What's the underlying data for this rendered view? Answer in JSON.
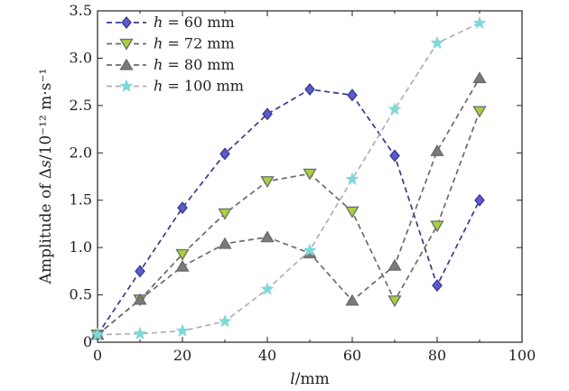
{
  "chart_data": {
    "type": "line",
    "xlabel": "l/mm",
    "ylabel": "Amplitude of Δs/10⁻¹² m·s⁻¹",
    "xlim": [
      0,
      100
    ],
    "ylim": [
      0,
      3.5
    ],
    "x_ticks": [
      0,
      20,
      40,
      60,
      80,
      100
    ],
    "y_ticks": [
      0,
      0.5,
      1.0,
      1.5,
      2.0,
      2.5,
      3.0,
      3.5
    ],
    "x_tick_labels": [
      "0",
      "20",
      "40",
      "60",
      "80",
      "100"
    ],
    "y_tick_labels": [
      "0",
      "0.5",
      "1.0",
      "1.5",
      "2.0",
      "2.5",
      "3.0",
      "3.5"
    ],
    "grid": false,
    "legend_position": "top-left",
    "series": [
      {
        "name": "h = 60 mm",
        "marker": "diamond",
        "line_color": "#3a3a8a",
        "marker_color": "#5b5bd0",
        "x": [
          0,
          10,
          20,
          30,
          40,
          50,
          60,
          70,
          80,
          90
        ],
        "values": [
          0.08,
          0.75,
          1.42,
          1.99,
          2.41,
          2.67,
          2.61,
          1.97,
          0.6,
          1.5
        ]
      },
      {
        "name": "h = 72 mm",
        "marker": "triangle-down",
        "line_color": "#6b6b6b",
        "marker_color": "#a8d040",
        "x": [
          0,
          10,
          20,
          30,
          40,
          50,
          60,
          70,
          80,
          90
        ],
        "values": [
          0.08,
          0.45,
          0.93,
          1.36,
          1.7,
          1.78,
          1.38,
          0.44,
          1.23,
          2.44
        ]
      },
      {
        "name": "h = 80 mm",
        "marker": "triangle-up",
        "line_color": "#6b6b6b",
        "marker_color": "#7a7a7a",
        "x": [
          0,
          10,
          20,
          30,
          40,
          50,
          60,
          70,
          80,
          90
        ],
        "values": [
          0.08,
          0.45,
          0.8,
          1.04,
          1.11,
          0.94,
          0.44,
          0.81,
          2.02,
          2.79
        ]
      },
      {
        "name": "h = 100 mm",
        "marker": "star",
        "line_color": "#b0b0b0",
        "marker_color": "#7fd8d8",
        "x": [
          0,
          10,
          20,
          30,
          40,
          50,
          60,
          70,
          80,
          90
        ],
        "values": [
          0.08,
          0.09,
          0.12,
          0.22,
          0.56,
          0.97,
          1.72,
          2.46,
          3.16,
          3.37
        ]
      }
    ]
  }
}
